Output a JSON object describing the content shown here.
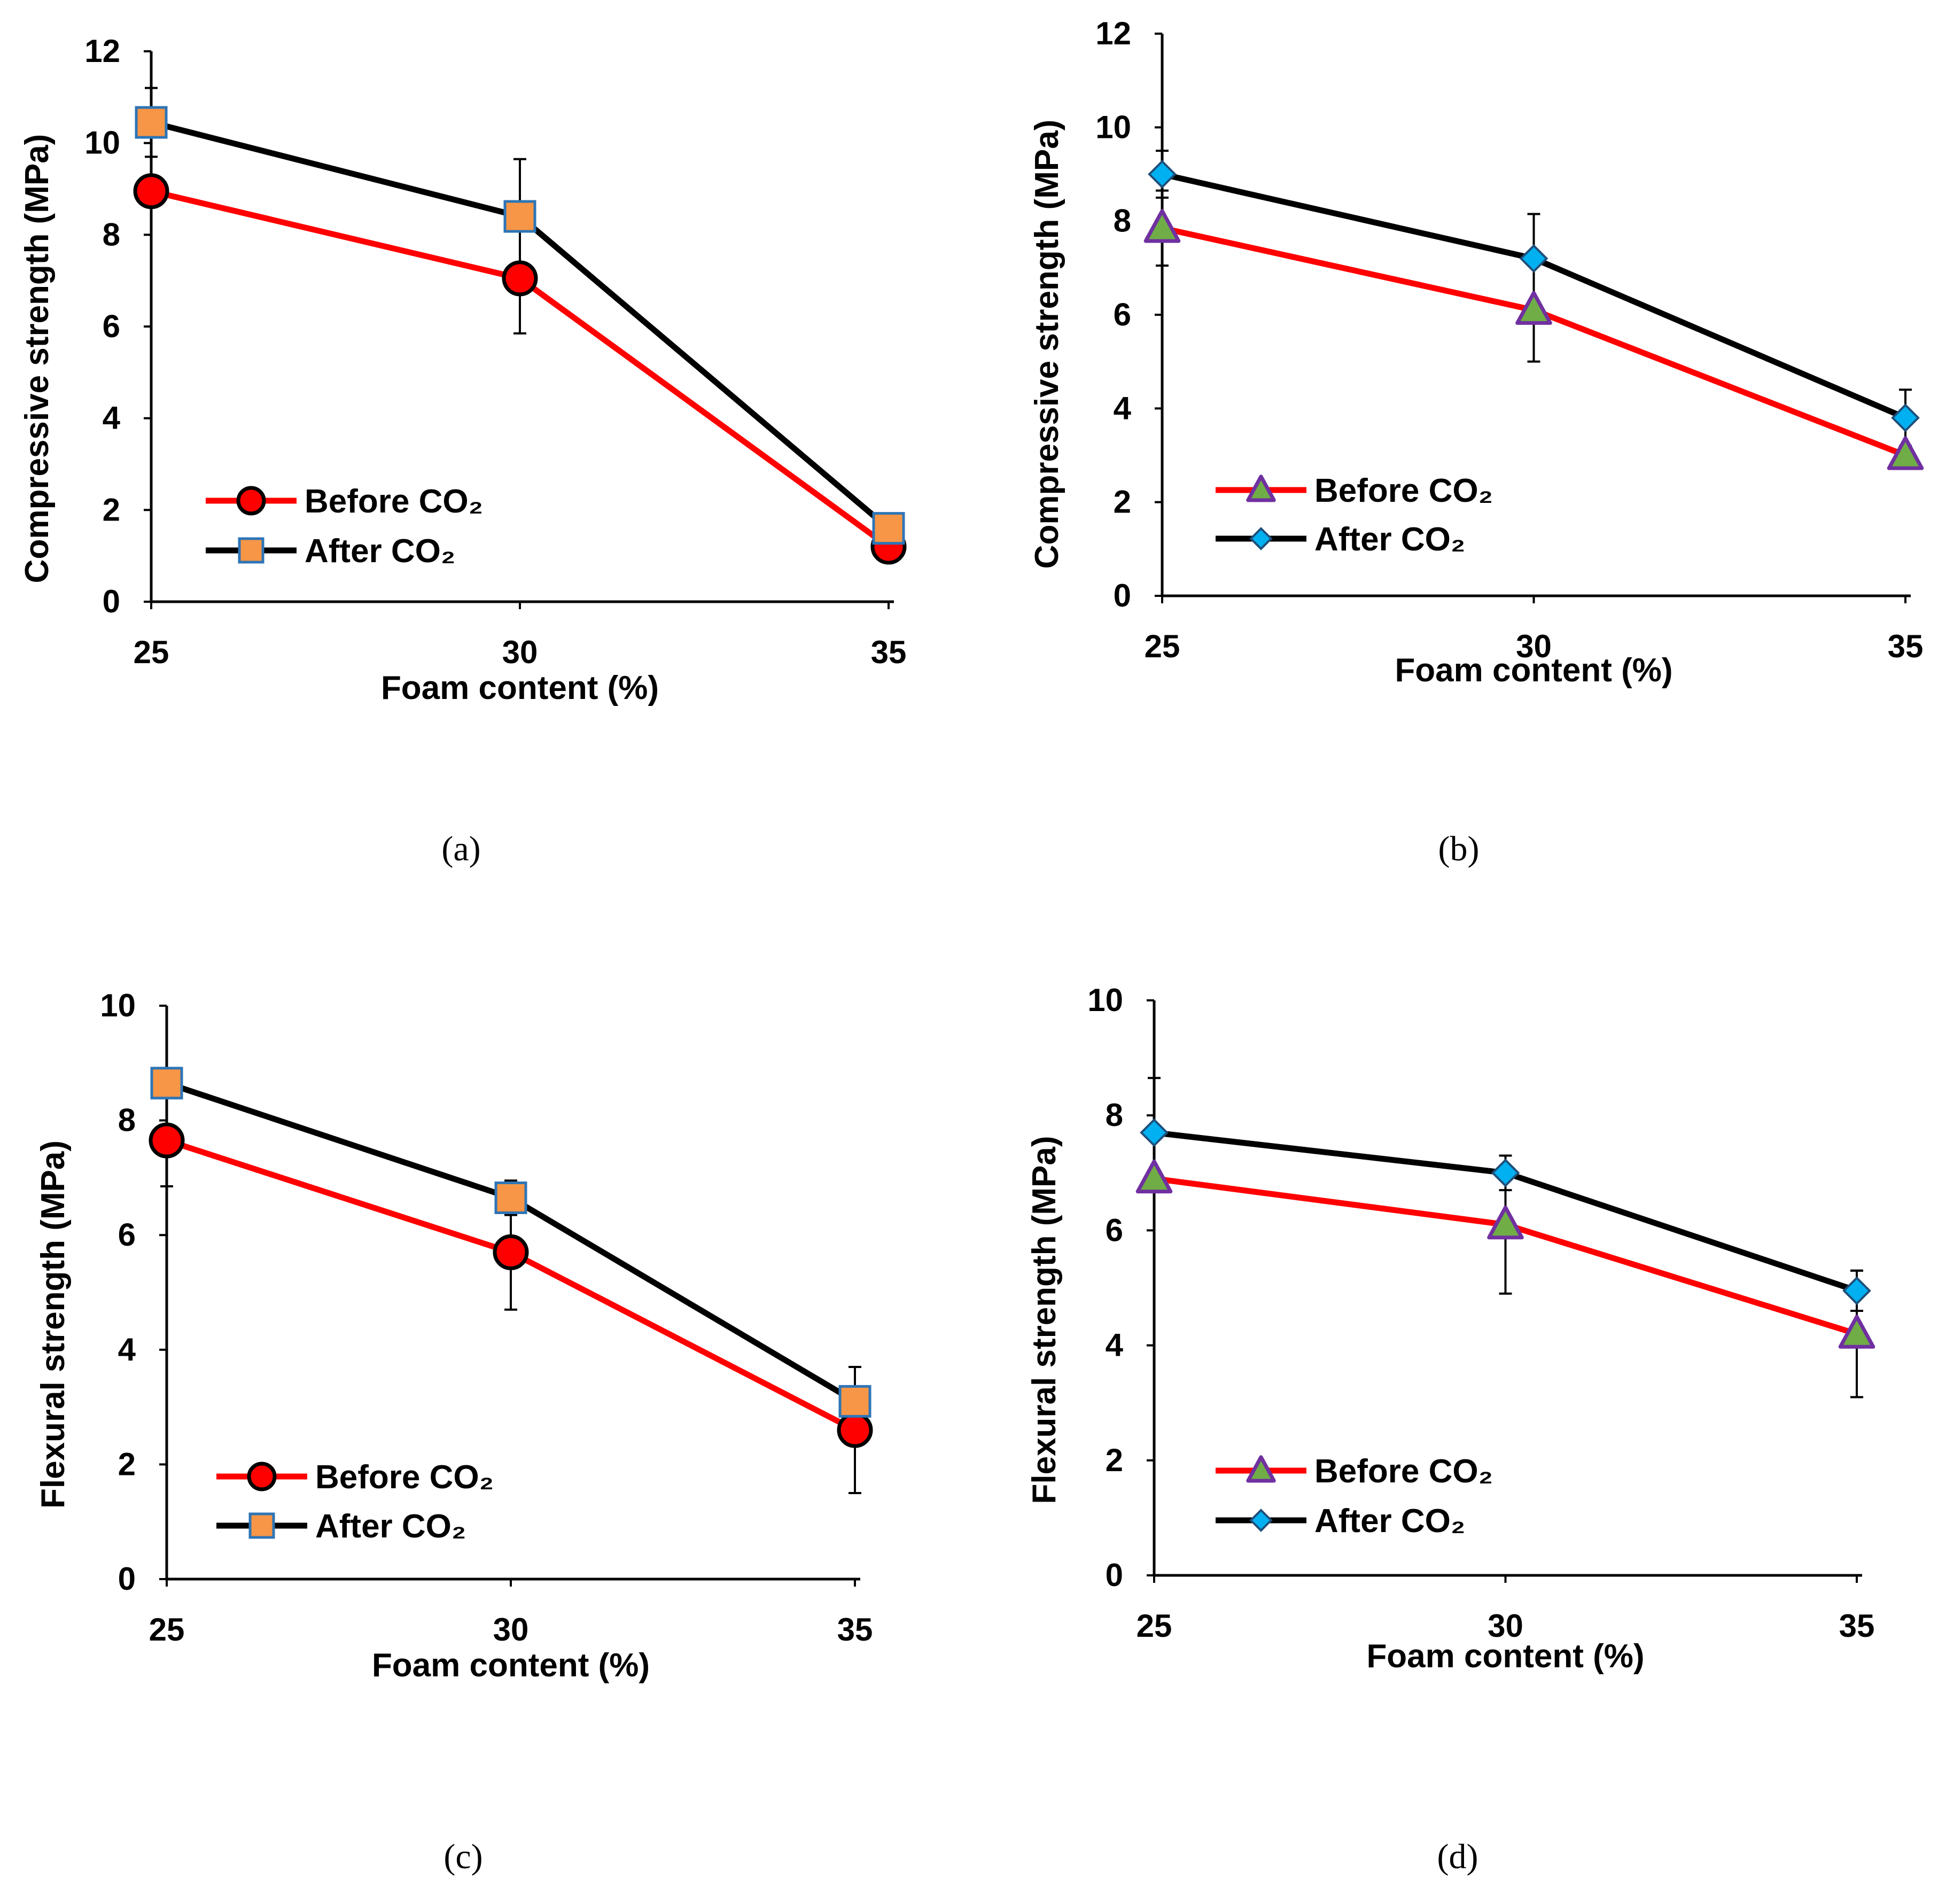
{
  "colors": {
    "before_line": "#ff0000",
    "after_line": "#000000",
    "circle_fill": "#ff0000",
    "square_fill": "#f79646",
    "square_stroke": "#2e75b6",
    "triangle_fill": "#70ad47",
    "triangle_stroke": "#7030a0",
    "diamond_fill": "#00b0f0",
    "diamond_stroke": "#1f4e79"
  },
  "chart_data": [
    {
      "id": "a",
      "type": "line",
      "caption": "(a)",
      "xlabel": "Foam content (%)",
      "ylabel": "Compressive strength (MPa)",
      "categories": [
        "25",
        "30",
        "35"
      ],
      "ylim": [
        0,
        12
      ],
      "yticks": [
        "0",
        "2",
        "4",
        "6",
        "8",
        "10",
        "12"
      ],
      "legend_position": "bottom-left",
      "series": [
        {
          "name": "Before CO₂",
          "values": [
            8.95,
            7.05,
            1.2
          ],
          "errors": [
            null,
            1.2,
            null
          ],
          "marker": "circle"
        },
        {
          "name": "After CO₂",
          "values": [
            10.45,
            8.4,
            1.6
          ],
          "errors": [
            0.75,
            1.25,
            null
          ],
          "marker": "square"
        }
      ]
    },
    {
      "id": "b",
      "type": "line",
      "caption": "(b)",
      "xlabel": "Foam content (%)",
      "ylabel": "Compressive strength (MPa)",
      "categories": [
        "25",
        "30",
        "35"
      ],
      "ylim": [
        0,
        12
      ],
      "yticks": [
        "0",
        "2",
        "4",
        "6",
        "8",
        "10",
        "12"
      ],
      "legend_position": "bottom-left",
      "series": [
        {
          "name": "Before CO₂",
          "values": [
            7.85,
            6.1,
            3.0
          ],
          "errors": [
            0.8,
            1.1,
            null
          ],
          "marker": "triangle"
        },
        {
          "name": "After CO₂",
          "values": [
            9.0,
            7.2,
            3.8
          ],
          "errors": [
            0.5,
            0.95,
            0.6
          ],
          "marker": "diamond"
        }
      ]
    },
    {
      "id": "c",
      "type": "line",
      "caption": "(c)",
      "xlabel": "Foam content (%)",
      "ylabel": "Flexural strength (MPa)",
      "categories": [
        "25",
        "30",
        "35"
      ],
      "ylim": [
        0,
        10
      ],
      "yticks": [
        "0",
        "2",
        "4",
        "6",
        "8",
        "10"
      ],
      "legend_position": "bottom-left",
      "series": [
        {
          "name": "Before CO₂",
          "values": [
            7.65,
            5.7,
            2.6
          ],
          "errors": [
            0.8,
            1.0,
            1.1
          ],
          "marker": "circle"
        },
        {
          "name": "After CO₂",
          "values": [
            8.65,
            6.65,
            3.1
          ],
          "errors": [
            null,
            0.3,
            0.6
          ],
          "marker": "square"
        }
      ]
    },
    {
      "id": "d",
      "type": "line",
      "caption": "(d)",
      "xlabel": "Foam content (%)",
      "ylabel": "Flexural strength (MPa)",
      "categories": [
        "25",
        "30",
        "35"
      ],
      "ylim": [
        0,
        10
      ],
      "yticks": [
        "0",
        "2",
        "4",
        "6",
        "8",
        "10"
      ],
      "legend_position": "bottom-left",
      "series": [
        {
          "name": "Before CO₂",
          "values": [
            6.9,
            6.1,
            4.2
          ],
          "errors": [
            null,
            1.2,
            1.1
          ],
          "marker": "triangle"
        },
        {
          "name": "After CO₂",
          "values": [
            7.7,
            7.0,
            4.95
          ],
          "errors": [
            0.95,
            0.3,
            0.35
          ],
          "marker": "diamond"
        }
      ]
    }
  ]
}
